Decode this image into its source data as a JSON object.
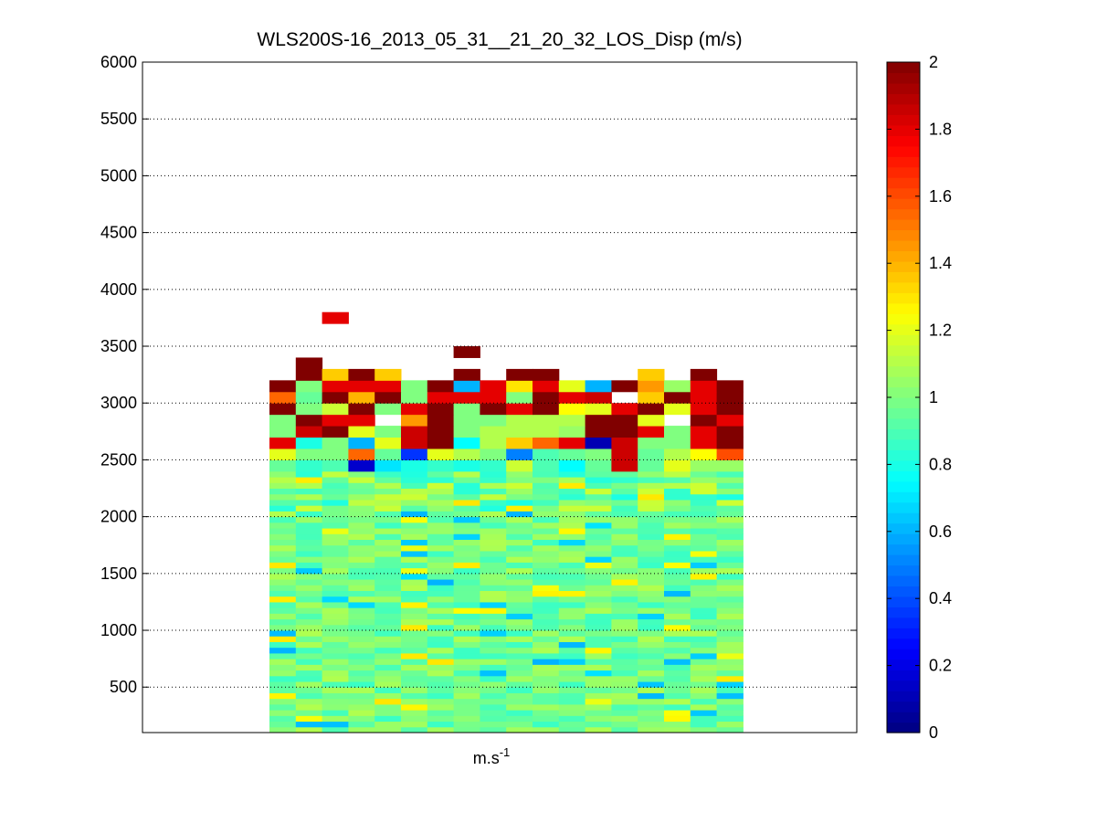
{
  "chart_data": {
    "type": "heatmap",
    "title": "WLS200S-16_2013_05_31__21_20_32_LOS_Disp (m/s)",
    "xlabel": "m.s",
    "xlabel_superscript": "-1",
    "ylabel": "",
    "ylim": [
      100,
      6000
    ],
    "yticks": [
      500,
      1000,
      1500,
      2000,
      2500,
      3000,
      3500,
      4000,
      4500,
      5000,
      5500,
      6000
    ],
    "grid": true,
    "colormap": "jet",
    "clim": [
      0,
      2
    ],
    "colorbar_ticks": [
      0,
      0.2,
      0.4,
      0.6,
      0.8,
      1,
      1.2,
      1.4,
      1.6,
      1.8,
      2
    ],
    "columns": 18,
    "data_row_ranges": {
      "dense_bottom": 100,
      "dense_top": 2400,
      "cell_height": 50
    },
    "top_rows": {
      "y_bottoms": [
        2400,
        2500,
        2600,
        2700,
        2800,
        2900,
        3000,
        3100
      ],
      "cell_height": 100,
      "values": [
        [
          0.95,
          0.85,
          0.9,
          0.15,
          0.7,
          0.8,
          0.85,
          0.8,
          0.85,
          1.15,
          0.9,
          0.75,
          0.95,
          1.85,
          0.95,
          1.2,
          1.05,
          1.05
        ],
        [
          1.2,
          1.0,
          1.0,
          1.55,
          0.95,
          0.35,
          1.2,
          1.1,
          1.0,
          0.5,
          0.9,
          0.95,
          1.0,
          1.85,
          0.95,
          1.1,
          1.25,
          1.6
        ],
        [
          1.8,
          0.8,
          1.0,
          0.6,
          1.2,
          1.85,
          2.0,
          0.75,
          1.1,
          1.35,
          1.55,
          1.8,
          0.1,
          1.85,
          1.0,
          1.0,
          1.8,
          2.0
        ],
        [
          1.0,
          1.85,
          2.0,
          1.2,
          1.0,
          1.85,
          2.0,
          1.0,
          1.1,
          1.1,
          1.1,
          1.05,
          2.0,
          2.0,
          1.8,
          1.0,
          1.8,
          2.0
        ],
        [
          1.0,
          2.0,
          1.8,
          1.8,
          null,
          1.45,
          2.0,
          1.0,
          1.0,
          1.1,
          1.1,
          1.1,
          2.0,
          2.0,
          1.2,
          null,
          2.0,
          1.8
        ],
        [
          2.0,
          1.0,
          1.15,
          2.0,
          1.0,
          1.8,
          2.0,
          1.0,
          2.0,
          1.8,
          2.0,
          1.25,
          1.2,
          1.8,
          2.0,
          1.2,
          1.8,
          2.0
        ],
        [
          1.55,
          0.95,
          2.0,
          1.4,
          2.0,
          1.0,
          1.8,
          1.8,
          1.8,
          1.0,
          2.0,
          1.8,
          1.85,
          null,
          1.35,
          2.0,
          1.8,
          2.0
        ],
        [
          2.0,
          1.0,
          1.8,
          1.8,
          1.8,
          1.0,
          2.0,
          0.6,
          1.8,
          1.3,
          1.8,
          1.2,
          0.6,
          2.0,
          1.45,
          1.05,
          1.8,
          2.0
        ]
      ]
    },
    "extra_cells": [
      {
        "col": 1,
        "y_bottom": 3200,
        "y_top": 3400,
        "value": 2.0
      },
      {
        "col": 2,
        "y_bottom": 3200,
        "y_top": 3300,
        "value": 1.35
      },
      {
        "col": 3,
        "y_bottom": 3200,
        "y_top": 3300,
        "value": 2.0
      },
      {
        "col": 4,
        "y_bottom": 3200,
        "y_top": 3300,
        "value": 1.35
      },
      {
        "col": 7,
        "y_bottom": 3200,
        "y_top": 3300,
        "value": 2.0
      },
      {
        "col": 9,
        "y_bottom": 3200,
        "y_top": 3300,
        "value": 2.0
      },
      {
        "col": 10,
        "y_bottom": 3200,
        "y_top": 3300,
        "value": 2.0
      },
      {
        "col": 14,
        "y_bottom": 3200,
        "y_top": 3300,
        "value": 1.35
      },
      {
        "col": 16,
        "y_bottom": 3200,
        "y_top": 3300,
        "value": 2.0
      },
      {
        "col": 2,
        "y_bottom": 3700,
        "y_top": 3800,
        "value": 1.8
      },
      {
        "col": 7,
        "y_bottom": 3400,
        "y_top": 3500,
        "value": 2.0
      }
    ]
  }
}
